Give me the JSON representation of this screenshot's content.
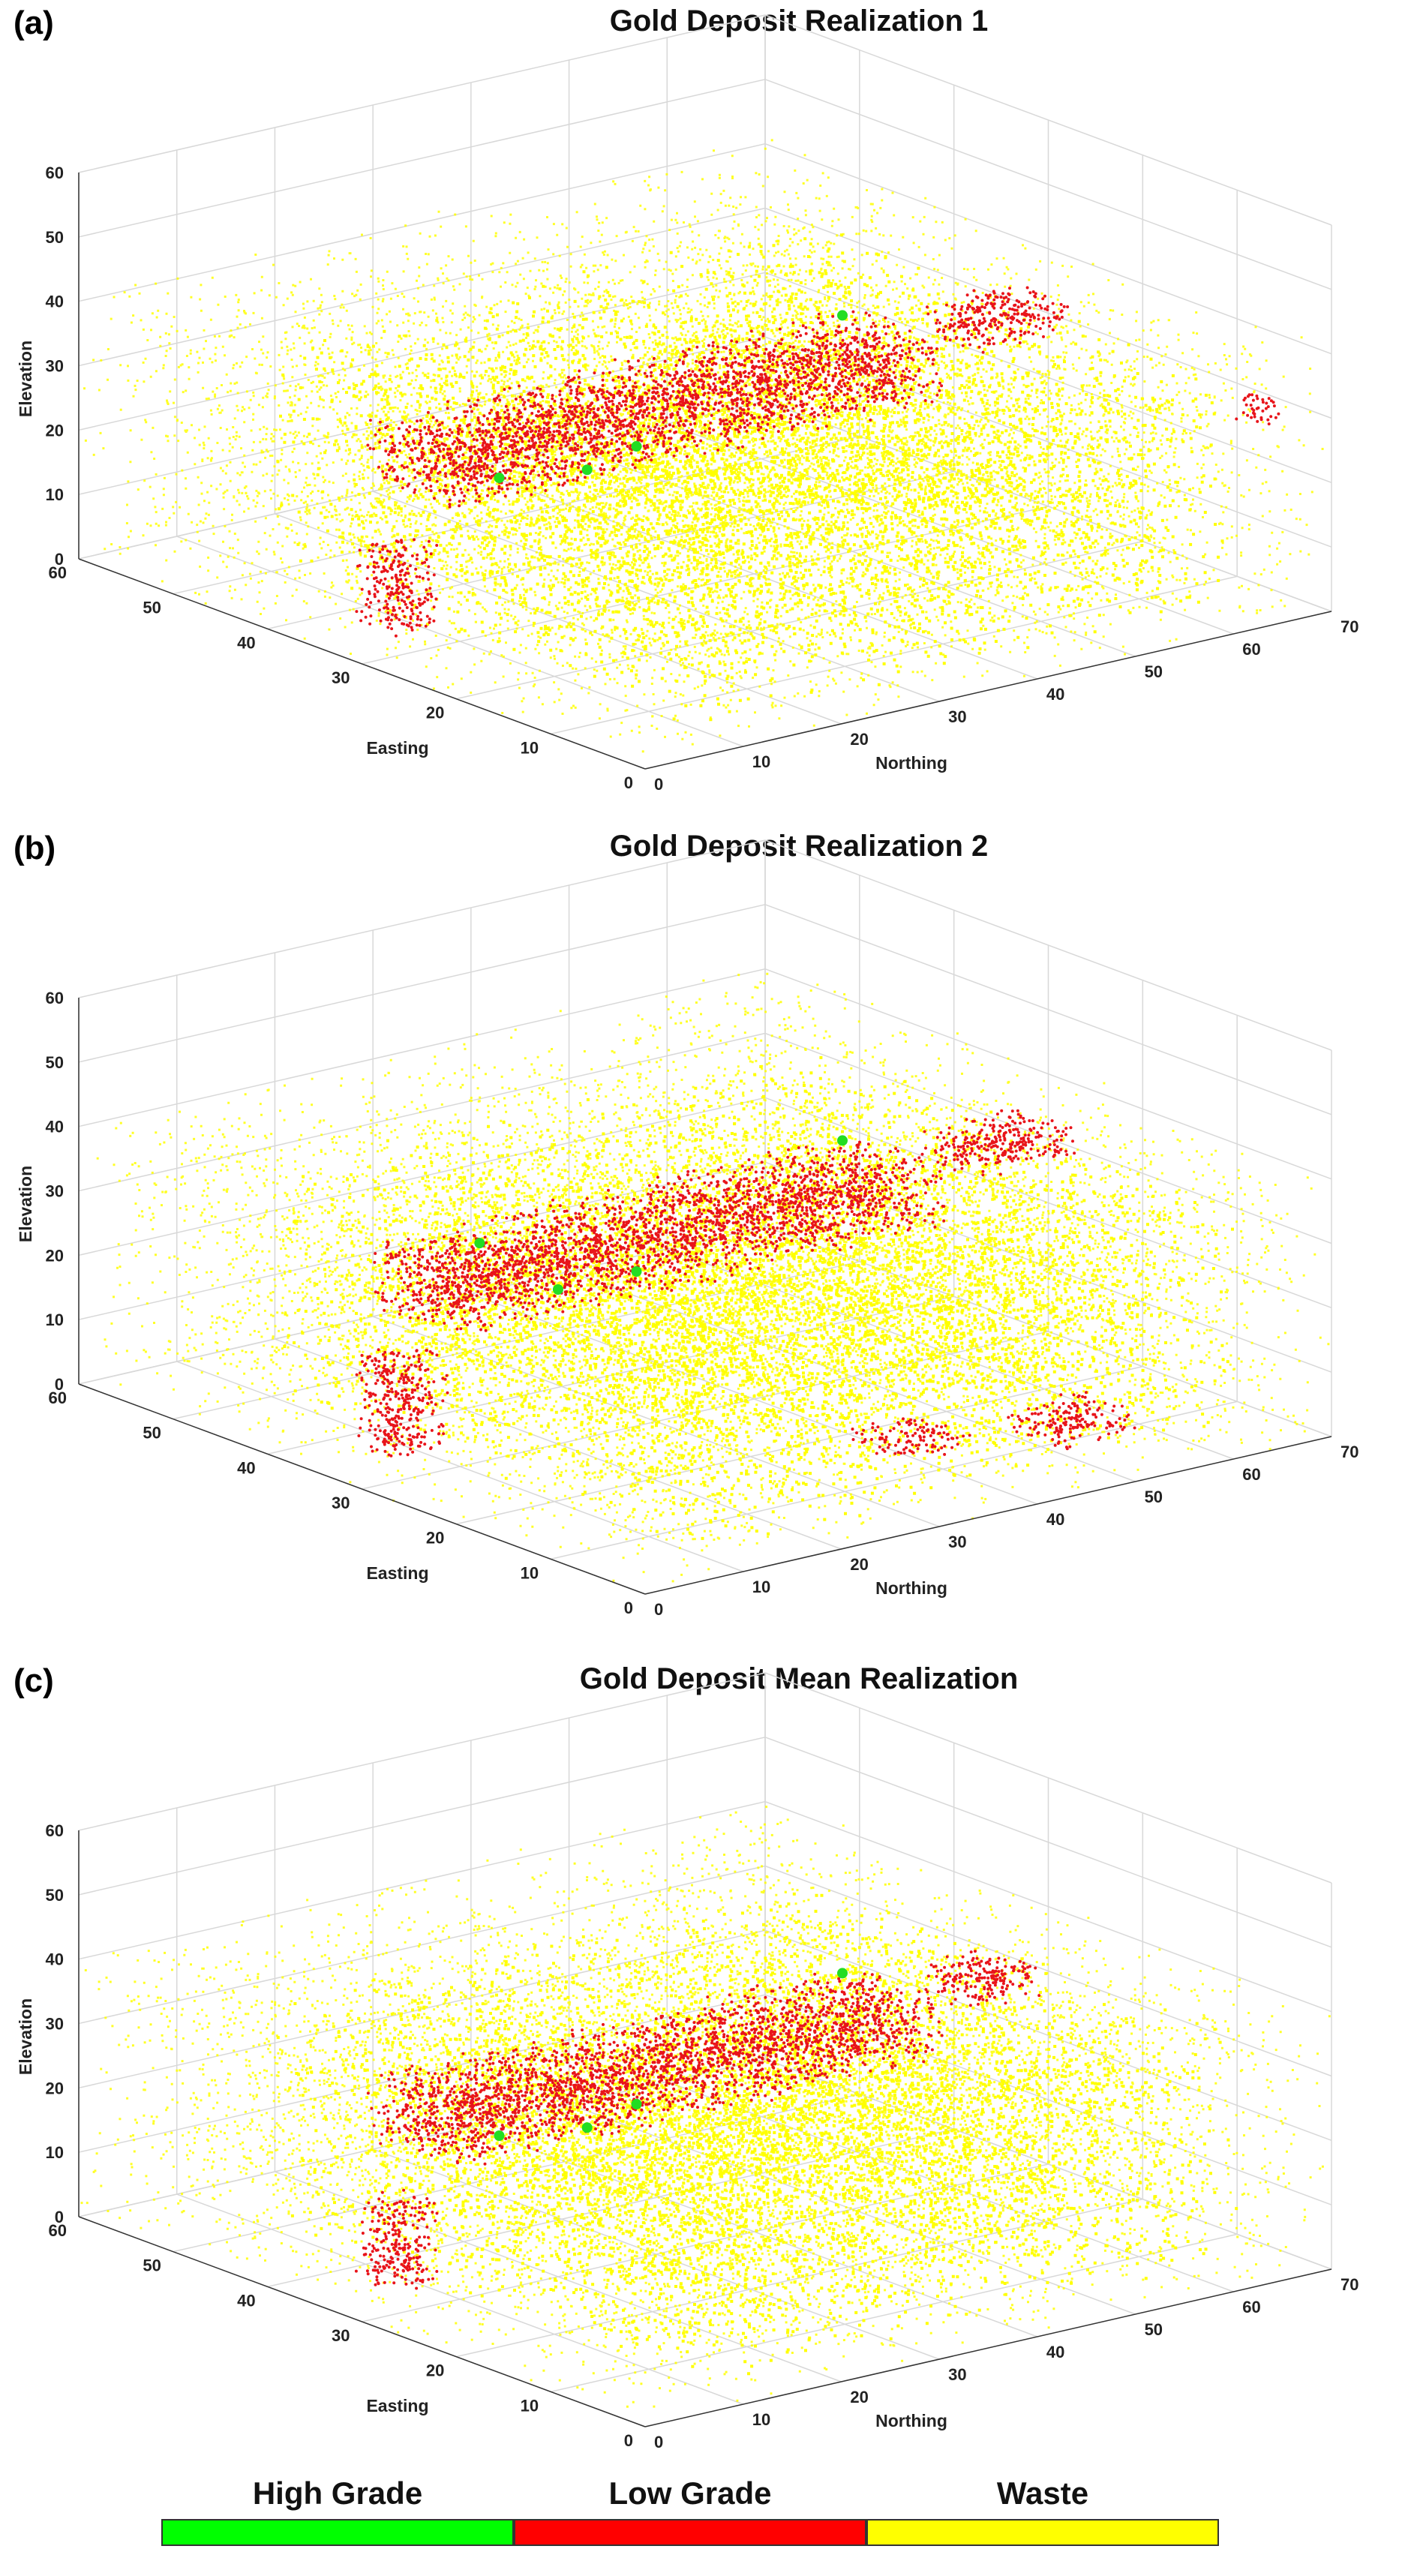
{
  "chart_data": [
    {
      "type": "scatter3d",
      "panel_label": "(a)",
      "title": "Gold Deposit Realization 1",
      "xlabel": "Northing",
      "ylabel": "Easting",
      "zlabel": "Elevation",
      "xlim": [
        0,
        70
      ],
      "ylim": [
        0,
        60
      ],
      "zlim": [
        0,
        60
      ],
      "x_ticks": [
        "0",
        "10",
        "20",
        "30",
        "40",
        "50",
        "60",
        "70"
      ],
      "y_ticks": [
        "0",
        "10",
        "20",
        "30",
        "40",
        "50",
        "60"
      ],
      "z_ticks": [
        "0",
        "10",
        "20",
        "30",
        "40",
        "50",
        "60"
      ],
      "low_grade_clusters": [
        {
          "x": [
            5,
            55
          ],
          "y": [
            25,
            35
          ],
          "z": [
            24,
            34
          ]
        },
        {
          "x": [
            3,
            8
          ],
          "y": [
            30,
            34
          ],
          "z": [
            3,
            16
          ]
        },
        {
          "x": [
            55,
            65
          ],
          "y": [
            22,
            28
          ],
          "z": [
            33,
            38
          ]
        },
        {
          "x": [
            68,
            70
          ],
          "y": [
            5,
            8
          ],
          "z": [
            26,
            30
          ]
        }
      ],
      "high_grade_points": [
        {
          "x": 14,
          "y": 30,
          "z": 24
        },
        {
          "x": 22,
          "y": 29,
          "z": 23
        },
        {
          "x": 28,
          "y": 30,
          "z": 24
        },
        {
          "x": 49,
          "y": 30,
          "z": 37
        }
      ]
    },
    {
      "type": "scatter3d",
      "panel_label": "(b)",
      "title": "Gold Deposit Realization 2",
      "xlabel": "Northing",
      "ylabel": "Easting",
      "zlabel": "Elevation",
      "xlim": [
        0,
        70
      ],
      "ylim": [
        0,
        60
      ],
      "zlim": [
        0,
        60
      ],
      "x_ticks": [
        "0",
        "10",
        "20",
        "30",
        "40",
        "50",
        "60",
        "70"
      ],
      "y_ticks": [
        "0",
        "10",
        "20",
        "30",
        "40",
        "50",
        "60"
      ],
      "z_ticks": [
        "0",
        "10",
        "20",
        "30",
        "40",
        "50",
        "60"
      ],
      "low_grade_clusters": [
        {
          "x": [
            5,
            55
          ],
          "y": [
            25,
            35
          ],
          "z": [
            24,
            34
          ]
        },
        {
          "x": [
            3,
            9
          ],
          "y": [
            30,
            34
          ],
          "z": [
            3,
            18
          ]
        },
        {
          "x": [
            55,
            65
          ],
          "y": [
            22,
            28
          ],
          "z": [
            33,
            38
          ]
        },
        {
          "x": [
            50,
            58
          ],
          "y": [
            8,
            14
          ],
          "z": [
            0,
            4
          ]
        },
        {
          "x": [
            38,
            45
          ],
          "y": [
            12,
            18
          ],
          "z": [
            0,
            3
          ]
        }
      ],
      "high_grade_points": [
        {
          "x": 12,
          "y": 30,
          "z": 34
        },
        {
          "x": 20,
          "y": 30,
          "z": 24
        },
        {
          "x": 28,
          "y": 30,
          "z": 24
        },
        {
          "x": 49,
          "y": 30,
          "z": 37
        }
      ]
    },
    {
      "type": "scatter3d",
      "panel_label": "(c)",
      "title": "Gold Deposit Mean Realization",
      "xlabel": "Northing",
      "ylabel": "Easting",
      "zlabel": "Elevation",
      "xlim": [
        0,
        70
      ],
      "ylim": [
        0,
        60
      ],
      "zlim": [
        0,
        60
      ],
      "x_ticks": [
        "0",
        "10",
        "20",
        "30",
        "40",
        "50",
        "60",
        "70"
      ],
      "y_ticks": [
        "0",
        "10",
        "20",
        "30",
        "40",
        "50",
        "60"
      ],
      "z_ticks": [
        "0",
        "10",
        "20",
        "30",
        "40",
        "50",
        "60"
      ],
      "low_grade_clusters": [
        {
          "x": [
            5,
            55
          ],
          "y": [
            25,
            35
          ],
          "z": [
            24,
            34
          ]
        },
        {
          "x": [
            3,
            8
          ],
          "y": [
            30,
            34
          ],
          "z": [
            3,
            16
          ]
        },
        {
          "x": [
            55,
            62
          ],
          "y": [
            22,
            28
          ],
          "z": [
            33,
            38
          ]
        }
      ],
      "high_grade_points": [
        {
          "x": 14,
          "y": 30,
          "z": 24
        },
        {
          "x": 22,
          "y": 29,
          "z": 23
        },
        {
          "x": 28,
          "y": 30,
          "z": 24
        },
        {
          "x": 49,
          "y": 30,
          "z": 37
        }
      ]
    }
  ],
  "legend": {
    "items": [
      {
        "label": "High Grade",
        "color": "#00ff00"
      },
      {
        "label": "Low Grade",
        "color": "#ff0000"
      },
      {
        "label": "Waste",
        "color": "#ffff00"
      }
    ]
  },
  "colors": {
    "high": "#22dd22",
    "low": "#e8141a",
    "waste": "#ffff00",
    "grid": "#d8d8d8"
  }
}
